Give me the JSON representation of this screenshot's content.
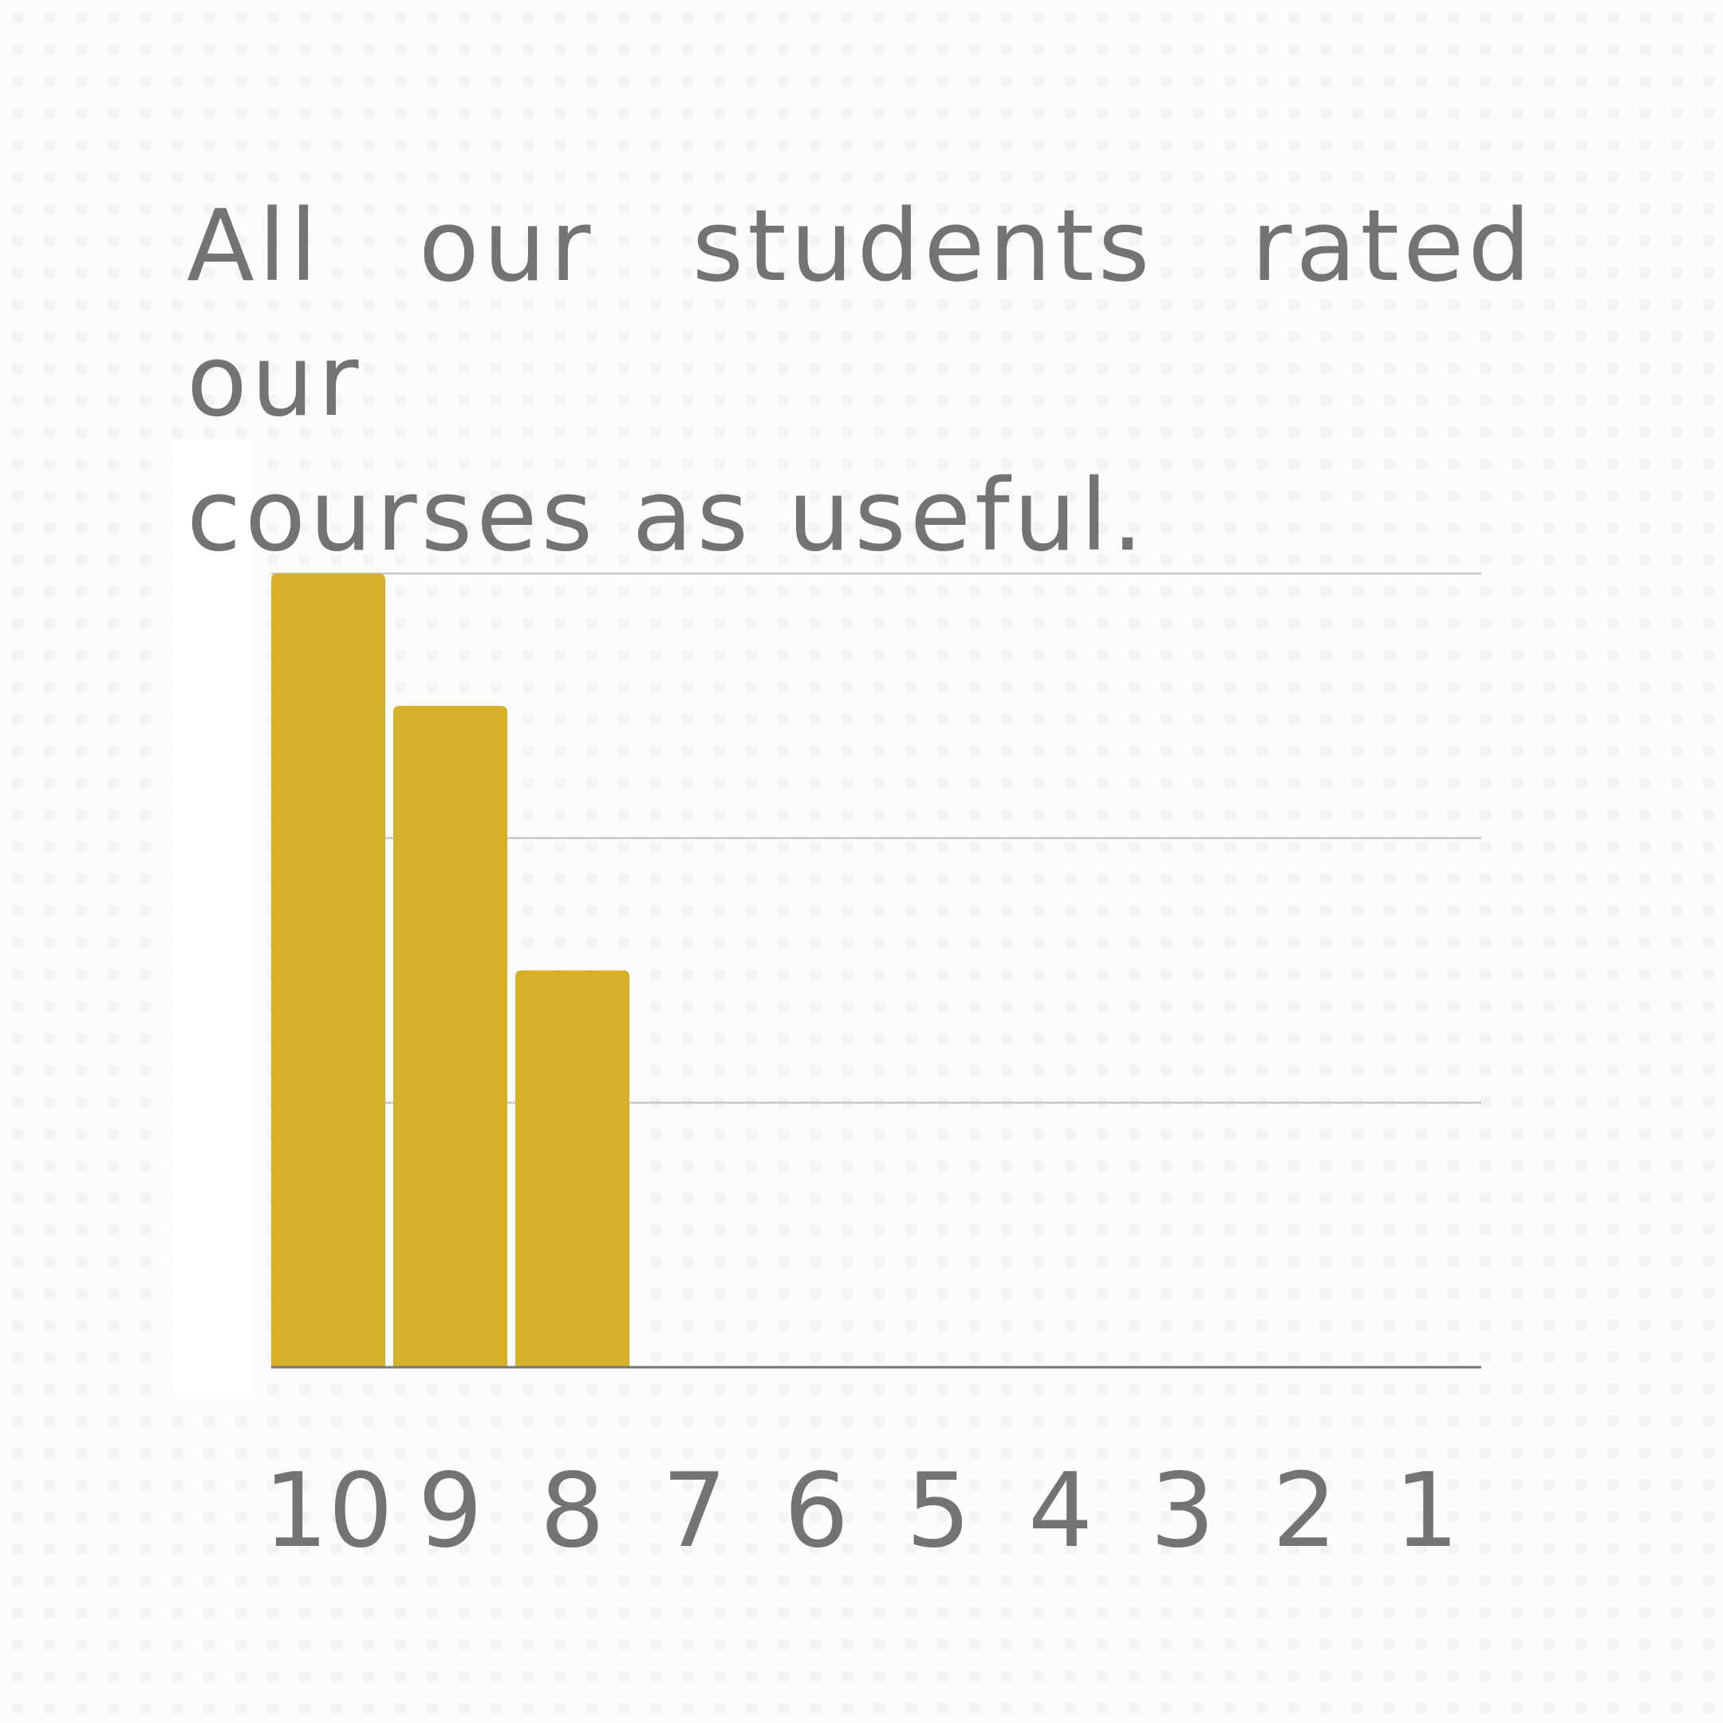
{
  "title": {
    "line1": "All our students rated our",
    "line2": "courses as useful."
  },
  "chart_data": {
    "type": "bar",
    "title": "All our students rated our courses as useful.",
    "categories": [
      "10",
      "9",
      "8",
      "7",
      "6",
      "5",
      "4",
      "3",
      "2",
      "1"
    ],
    "values": [
      3,
      2.5,
      1.5,
      0,
      0,
      0,
      0,
      0,
      0,
      0
    ],
    "xlabel": "",
    "ylabel": "",
    "ylim": [
      0,
      3
    ],
    "yticks_shown": false,
    "grid": true,
    "bar_color": "#d6b028",
    "grid_color": "#c8c8c8",
    "axis_color": "#777777",
    "text_color": "#737373"
  }
}
